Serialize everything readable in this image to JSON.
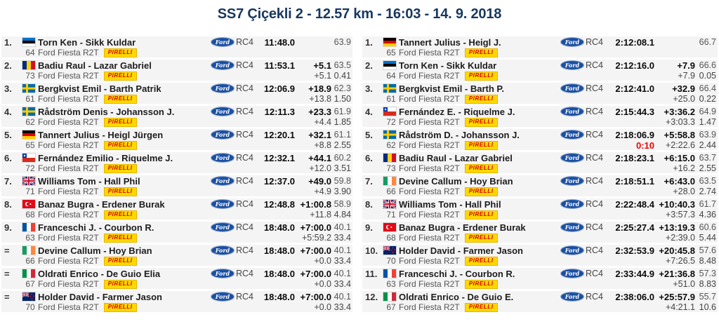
{
  "page": {
    "title": "SS7 Çiçekli 2 - 12.57 km - 16:03 - 14. 9. 2018"
  },
  "brands": {
    "ford_label": "Ford",
    "pirelli_label": "PIRELLI"
  },
  "row_defaults": {
    "car": "Ford Fiesta R2T",
    "class": "RC4",
    "tyre": "PIRELLI"
  },
  "colors": {
    "title_navy": "#17375e",
    "row_bg": "#f4f4f4",
    "penalty_red": "#ee0000",
    "ford_blue": "#1b4fa0",
    "pirelli_yellow": "#ffd800"
  },
  "stage_results": {
    "rows": [
      {
        "pos": "1.",
        "flag": "ee",
        "drivers": "Torn Ken - Sikk Kuldar",
        "num": "64",
        "time": "11:48.0",
        "gap": "",
        "avg": "63.9",
        "penalty": "",
        "diff2": "",
        "met2": ""
      },
      {
        "pos": "2.",
        "flag": "ro",
        "drivers": "Badiu Raul - Lazar Gabriel",
        "num": "73",
        "time": "11:53.1",
        "gap": "+5.1",
        "avg": "63.5",
        "penalty": "",
        "diff2": "+5.1",
        "met2": "0.41"
      },
      {
        "pos": "3.",
        "flag": "se",
        "drivers": "Bergkvist Emil - Barth Patrik",
        "num": "61",
        "time": "12:06.9",
        "gap": "+18.9",
        "avg": "62.3",
        "penalty": "",
        "diff2": "+13.8",
        "met2": "1.50"
      },
      {
        "pos": "4.",
        "flag": "se",
        "drivers": "Rådström Denis - Johansson J.",
        "num": "62",
        "time": "12:11.3",
        "gap": "+23.3",
        "avg": "61.9",
        "penalty": "",
        "diff2": "+4.4",
        "met2": "1.85"
      },
      {
        "pos": "5.",
        "flag": "de",
        "drivers": "Tannert Julius - Heigl Jürgen",
        "num": "65",
        "time": "12:20.1",
        "gap": "+32.1",
        "avg": "61.1",
        "penalty": "",
        "diff2": "+8.8",
        "met2": "2.55"
      },
      {
        "pos": "6.",
        "flag": "cl",
        "drivers": "Fernández Emilio - Riquelme J.",
        "num": "72",
        "time": "12:32.1",
        "gap": "+44.1",
        "avg": "60.2",
        "penalty": "",
        "diff2": "+12.0",
        "met2": "3.51"
      },
      {
        "pos": "7.",
        "flag": "gb",
        "drivers": "Williams Tom - Hall Phil",
        "num": "71",
        "time": "12:37.0",
        "gap": "+49.0",
        "avg": "59.8",
        "penalty": "",
        "diff2": "+4.9",
        "met2": "3.90"
      },
      {
        "pos": "8.",
        "flag": "tr",
        "drivers": "Banaz Bugra - Erdener Burak",
        "num": "68",
        "time": "12:48.8",
        "gap": "+1:00.8",
        "avg": "58.9",
        "penalty": "",
        "diff2": "+11.8",
        "met2": "4.84"
      },
      {
        "pos": "9.",
        "flag": "fr",
        "drivers": "Franceschi J. - Courbon R.",
        "num": "63",
        "time": "18:48.0",
        "gap": "+7:00.0",
        "avg": "40.1",
        "penalty": "",
        "diff2": "+5:59.2",
        "met2": "33.4"
      },
      {
        "pos": "=",
        "flag": "ie",
        "drivers": "Devine Callum - Hoy Brian",
        "num": "66",
        "time": "18:48.0",
        "gap": "+7:00.0",
        "avg": "40.1",
        "penalty": "",
        "diff2": "+0.0",
        "met2": "33.4"
      },
      {
        "pos": "=",
        "flag": "it",
        "drivers": "Oldrati Enrico - De Guio Elia",
        "num": "67",
        "time": "18:48.0",
        "gap": "+7:00.0",
        "avg": "40.1",
        "penalty": "",
        "diff2": "+0.0",
        "met2": "33.4"
      },
      {
        "pos": "=",
        "flag": "nz",
        "drivers": "Holder David - Farmer Jason",
        "num": "70",
        "time": "18:48.0",
        "gap": "+7:00.0",
        "avg": "40.1",
        "penalty": "",
        "diff2": "+0.0",
        "met2": "33.4"
      }
    ]
  },
  "overall_results": {
    "rows": [
      {
        "pos": "1.",
        "flag": "de",
        "drivers": "Tannert Julius - Heigl J.",
        "num": "65",
        "time": "2:12:08.1",
        "gap": "",
        "avg": "66.7",
        "penalty": "",
        "diff2": "",
        "met2": ""
      },
      {
        "pos": "2.",
        "flag": "ee",
        "drivers": "Torn Ken - Sikk Kuldar",
        "num": "64",
        "time": "2:12:16.0",
        "gap": "+7.9",
        "avg": "66.6",
        "penalty": "",
        "diff2": "+7.9",
        "met2": "0.05"
      },
      {
        "pos": "3.",
        "flag": "se",
        "drivers": "Bergkvist Emil - Barth P.",
        "num": "61",
        "time": "2:12:41.0",
        "gap": "+32.9",
        "avg": "66.4",
        "penalty": "",
        "diff2": "+25.0",
        "met2": "0.22"
      },
      {
        "pos": "4.",
        "flag": "cl",
        "drivers": "Fernández E. - Riquelme J.",
        "num": "72",
        "time": "2:15:44.3",
        "gap": "+3:36.2",
        "avg": "64.9",
        "penalty": "",
        "diff2": "+3:03.3",
        "met2": "1.47"
      },
      {
        "pos": "5.",
        "flag": "se",
        "drivers": "Rådström D. - Johansson J.",
        "num": "62",
        "time": "2:18:06.9",
        "gap": "+5:58.8",
        "avg": "63.9",
        "penalty": "0:10",
        "diff2": "+2:22.6",
        "met2": "2.44"
      },
      {
        "pos": "6.",
        "flag": "ro",
        "drivers": "Badiu Raul - Lazar Gabriel",
        "num": "73",
        "time": "2:18:23.1",
        "gap": "+6:15.0",
        "avg": "63.7",
        "penalty": "",
        "diff2": "+16.2",
        "met2": "2.55"
      },
      {
        "pos": "7.",
        "flag": "ie",
        "drivers": "Devine Callum - Hoy Brian",
        "num": "66",
        "time": "2:18:51.1",
        "gap": "+6:43.0",
        "avg": "63.5",
        "penalty": "",
        "diff2": "+28.0",
        "met2": "2.74"
      },
      {
        "pos": "8.",
        "flag": "gb",
        "drivers": "Williams Tom - Hall Phil",
        "num": "71",
        "time": "2:22:48.4",
        "gap": "+10:40.3",
        "avg": "61.7",
        "penalty": "",
        "diff2": "+3:57.3",
        "met2": "4.36"
      },
      {
        "pos": "9.",
        "flag": "tr",
        "drivers": "Banaz Bugra - Erdener Burak",
        "num": "68",
        "time": "2:25:27.4",
        "gap": "+13:19.3",
        "avg": "60.6",
        "penalty": "",
        "diff2": "+2:39.0",
        "met2": "5.44"
      },
      {
        "pos": "10.",
        "flag": "nz",
        "drivers": "Holder David - Farmer Jason",
        "num": "70",
        "time": "2:32:53.9",
        "gap": "+20:45.8",
        "avg": "57.6",
        "penalty": "",
        "diff2": "+7:26.5",
        "met2": "8.48"
      },
      {
        "pos": "11.",
        "flag": "fr",
        "drivers": "Franceschi J. - Courbon R.",
        "num": "63",
        "time": "2:33:44.9",
        "gap": "+21:36.8",
        "avg": "57.3",
        "penalty": "",
        "diff2": "+51.0",
        "met2": "8.83"
      },
      {
        "pos": "12.",
        "flag": "it",
        "drivers": "Oldrati Enrico - De Guio E.",
        "num": "67",
        "time": "2:38:06.0",
        "gap": "+25:57.9",
        "avg": "55.7",
        "penalty": "",
        "diff2": "+4:21.1",
        "met2": "10.6"
      }
    ]
  }
}
